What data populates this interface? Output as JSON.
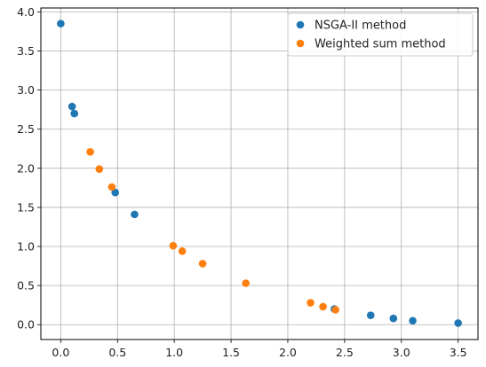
{
  "chart_data": {
    "type": "scatter",
    "title": "",
    "xlabel": "",
    "ylabel": "",
    "xlim": [
      -0.175,
      3.675
    ],
    "ylim": [
      -0.19,
      4.05
    ],
    "xticks": [
      0.0,
      0.5,
      1.0,
      1.5,
      2.0,
      2.5,
      3.0,
      3.5
    ],
    "xtick_labels": [
      "0.0",
      "0.5",
      "1.0",
      "1.5",
      "2.0",
      "2.5",
      "3.0",
      "3.5"
    ],
    "yticks": [
      0.0,
      0.5,
      1.0,
      1.5,
      2.0,
      2.5,
      3.0,
      3.5,
      4.0
    ],
    "ytick_labels": [
      "0.0",
      "0.5",
      "1.0",
      "1.5",
      "2.0",
      "2.5",
      "3.0",
      "3.5",
      "4.0"
    ],
    "grid": true,
    "legend_position": "top-right",
    "series": [
      {
        "name": "NSGA-II method",
        "color": "#1f77b4",
        "points": [
          [
            0.0,
            3.85
          ],
          [
            0.1,
            2.79
          ],
          [
            0.12,
            2.7
          ],
          [
            0.48,
            1.69
          ],
          [
            0.65,
            1.41
          ],
          [
            2.41,
            0.2
          ],
          [
            2.73,
            0.12
          ],
          [
            2.93,
            0.08
          ],
          [
            3.1,
            0.05
          ],
          [
            3.5,
            0.02
          ]
        ]
      },
      {
        "name": "Weighted sum method",
        "color": "#ff7f0e",
        "points": [
          [
            0.26,
            2.21
          ],
          [
            0.34,
            1.99
          ],
          [
            0.45,
            1.76
          ],
          [
            0.99,
            1.01
          ],
          [
            1.07,
            0.94
          ],
          [
            1.25,
            0.78
          ],
          [
            1.63,
            0.53
          ],
          [
            2.2,
            0.28
          ],
          [
            2.31,
            0.23
          ],
          [
            2.42,
            0.19
          ]
        ]
      }
    ]
  }
}
